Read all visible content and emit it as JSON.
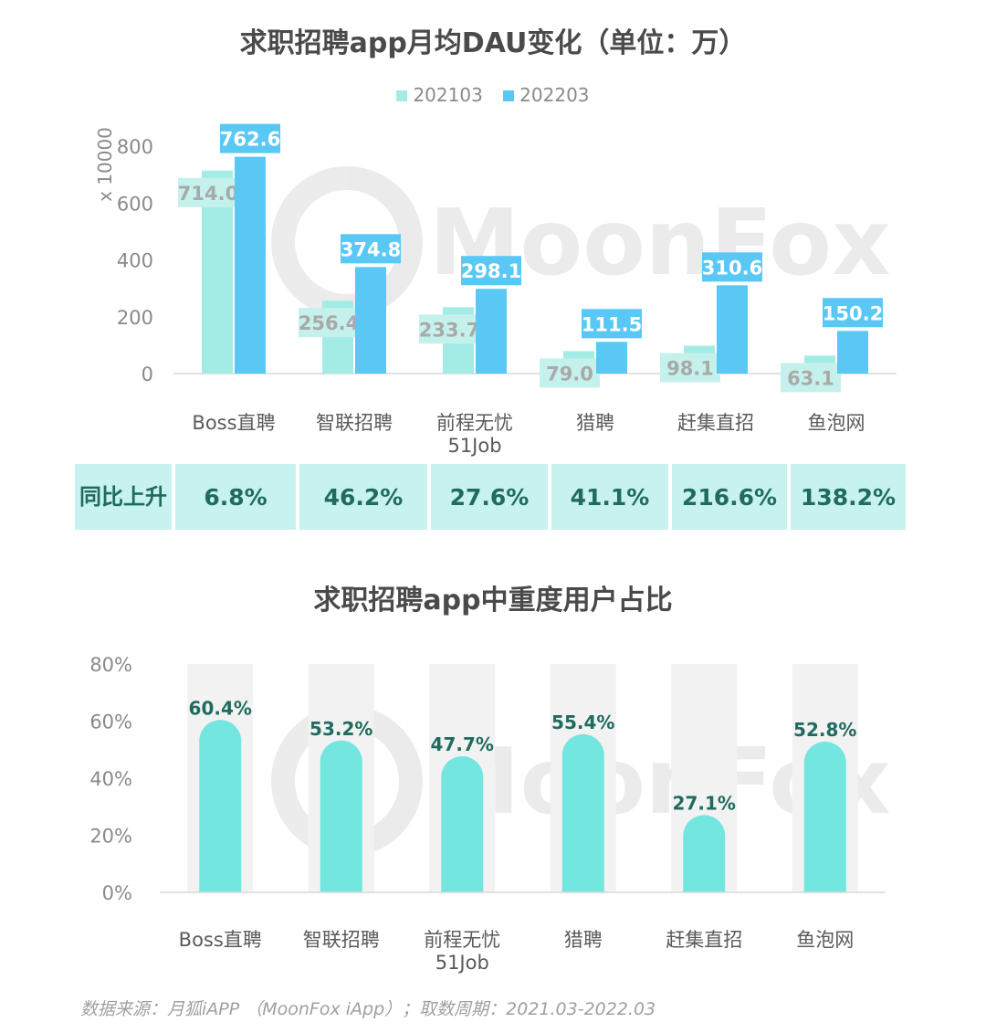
{
  "chart_data": [
    {
      "type": "bar",
      "title": "求职招聘app月均DAU变化（单位：万）",
      "ylabel": "x 10000",
      "ylim": [
        0,
        800
      ],
      "yticks": [
        0,
        200,
        400,
        600,
        800
      ],
      "categories": [
        "Boss直聘",
        "智联招聘",
        "前程无忧\n51Job",
        "猎聘",
        "赶集直招",
        "鱼泡网"
      ],
      "series": [
        {
          "name": "202103",
          "color": "#a3ece6",
          "values": [
            714.0,
            256.4,
            233.7,
            79.0,
            98.1,
            63.1
          ]
        },
        {
          "name": "202203",
          "color": "#5ac8f5",
          "values": [
            762.6,
            374.8,
            298.1,
            111.5,
            310.6,
            150.2
          ]
        }
      ],
      "legend": "top-center",
      "grid": false
    },
    {
      "type": "bar",
      "title": "求职招聘app中重度用户占比",
      "ylim": [
        0,
        80
      ],
      "yticks": [
        "0%",
        "20%",
        "40%",
        "60%",
        "80%"
      ],
      "categories": [
        "Boss直聘",
        "智联招聘",
        "前程无忧\n51Job",
        "猎聘",
        "赶集直招",
        "鱼泡网"
      ],
      "values": [
        60.4,
        53.2,
        47.7,
        55.4,
        27.1,
        52.8
      ],
      "value_labels": [
        "60.4%",
        "53.2%",
        "47.7%",
        "55.4%",
        "27.1%",
        "52.8%"
      ],
      "color": "#72e6df",
      "background_color": "#f2f2f2",
      "grid": false
    }
  ],
  "yoy_table": {
    "header": "同比\n上升",
    "values": [
      "6.8%",
      "46.2%",
      "27.6%",
      "41.1%",
      "216.6%",
      "138.2%"
    ]
  },
  "watermark": "MoonFox",
  "source": "数据来源：月狐iAPP （MoonFox iApp）；取数周期：2021.03-2022.03"
}
